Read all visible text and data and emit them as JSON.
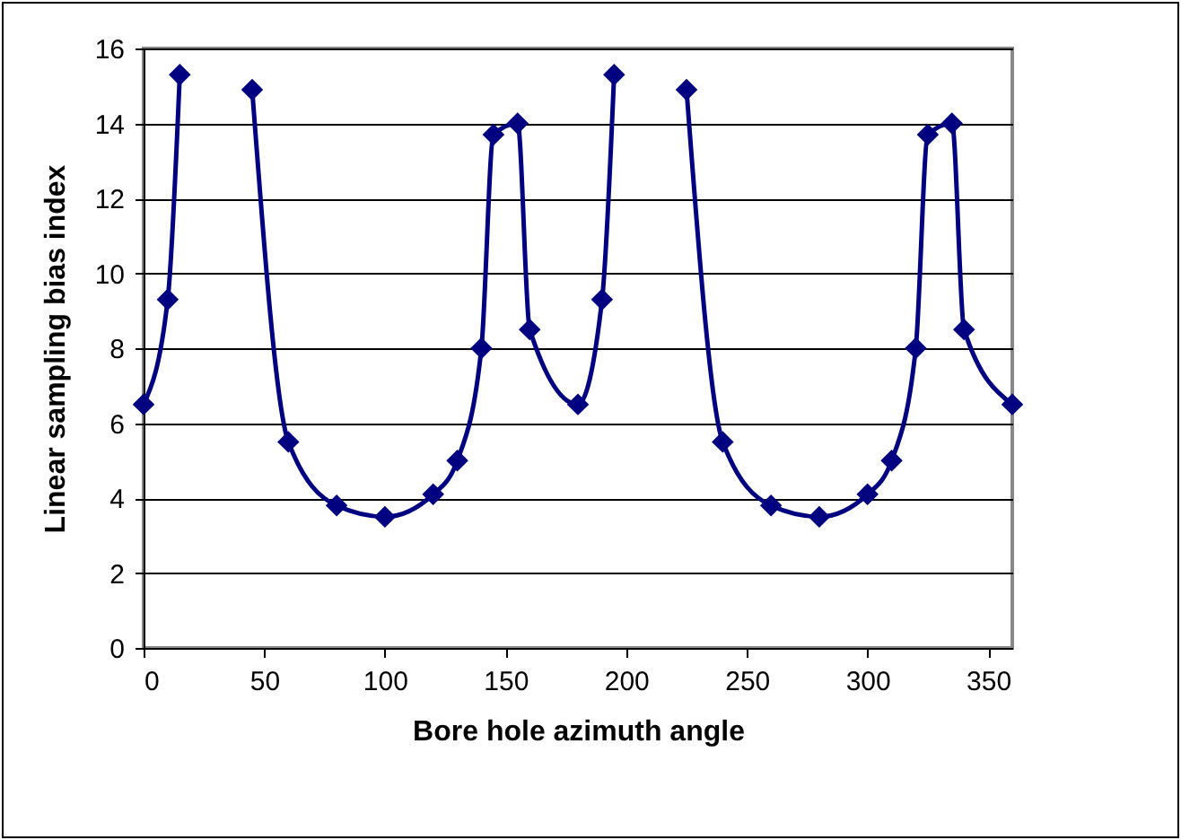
{
  "chart_data": {
    "type": "line",
    "xlabel": "Bore hole azimuth angle",
    "ylabel": "Linear sampling bias index",
    "x": [
      0,
      10,
      15,
      30,
      45,
      60,
      80,
      100,
      120,
      130,
      140,
      145,
      155,
      160,
      180,
      190,
      195,
      210,
      225,
      240,
      260,
      280,
      300,
      310,
      320,
      325,
      335,
      340,
      360
    ],
    "series": [
      {
        "color": "#000080",
        "values": [
          6.5,
          9.3,
          15.3,
          null,
          14.9,
          5.5,
          3.8,
          3.5,
          4.1,
          5.0,
          8.0,
          13.7,
          14.0,
          8.5,
          6.5,
          9.3,
          15.3,
          null,
          14.9,
          5.5,
          3.8,
          3.5,
          4.1,
          5.0,
          8.0,
          13.7,
          14.0,
          8.5,
          6.5
        ]
      }
    ],
    "xlim": [
      0,
      360
    ],
    "xticks": [
      0,
      50,
      100,
      150,
      200,
      250,
      300,
      350
    ],
    "ylim": [
      0,
      16
    ],
    "yticks": [
      0,
      2,
      4,
      6,
      8,
      10,
      12,
      14,
      16
    ],
    "grid": "y",
    "marker": "diamond"
  }
}
